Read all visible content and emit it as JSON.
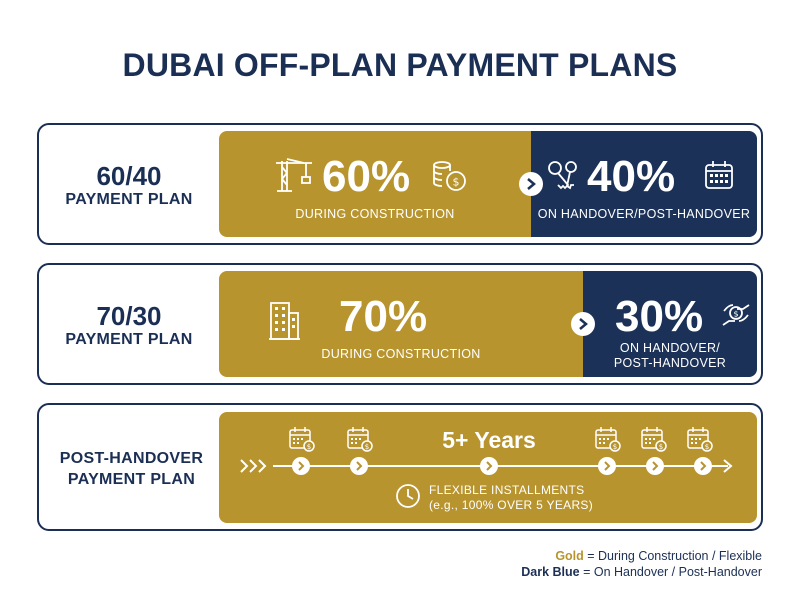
{
  "title": "DUBAI OFF-PLAN PAYMENT PLANS",
  "colors": {
    "gold": "#b8942f",
    "navy": "#1b3157",
    "text": "#1b2f55"
  },
  "plans": [
    {
      "label_big": "60/40",
      "label_small": "PAYMENT PLAN",
      "left_pct": "60%",
      "left_text": "DURING CONSTRUCTION",
      "right_pct": "40%",
      "right_text": "ON HANDOVER/POST-HANDOVER",
      "icons": [
        "crane-icon",
        "coins-icon",
        "keys-icon",
        "calendar-icon"
      ]
    },
    {
      "label_big": "70/30",
      "label_small": "PAYMENT PLAN",
      "left_pct": "70%",
      "left_text": "DURING CONSTRUCTION",
      "right_pct": "30%",
      "right_text_1": "ON HANDOVER/",
      "right_text_2": "POST-HANDOVER",
      "icons": [
        "building-icon",
        "hand-coin-icon"
      ]
    },
    {
      "label_line1": "POST-HANDOVER",
      "label_line2": "PAYMENT PLAN",
      "years": "5+ Years",
      "flex_1": "FLEXIBLE INSTALLMENTS",
      "flex_2": "(e.g., 100% OVER 5 YEARS)",
      "icons": [
        "calendar-coin-icon",
        "clock-icon",
        "chevron-right-icon"
      ]
    }
  ],
  "legend": {
    "gold_word": "Gold",
    "gold_rest": " = During Construction / Flexible",
    "navy_word": "Dark Blue",
    "navy_rest": " = On Handover / Post-Handover"
  }
}
